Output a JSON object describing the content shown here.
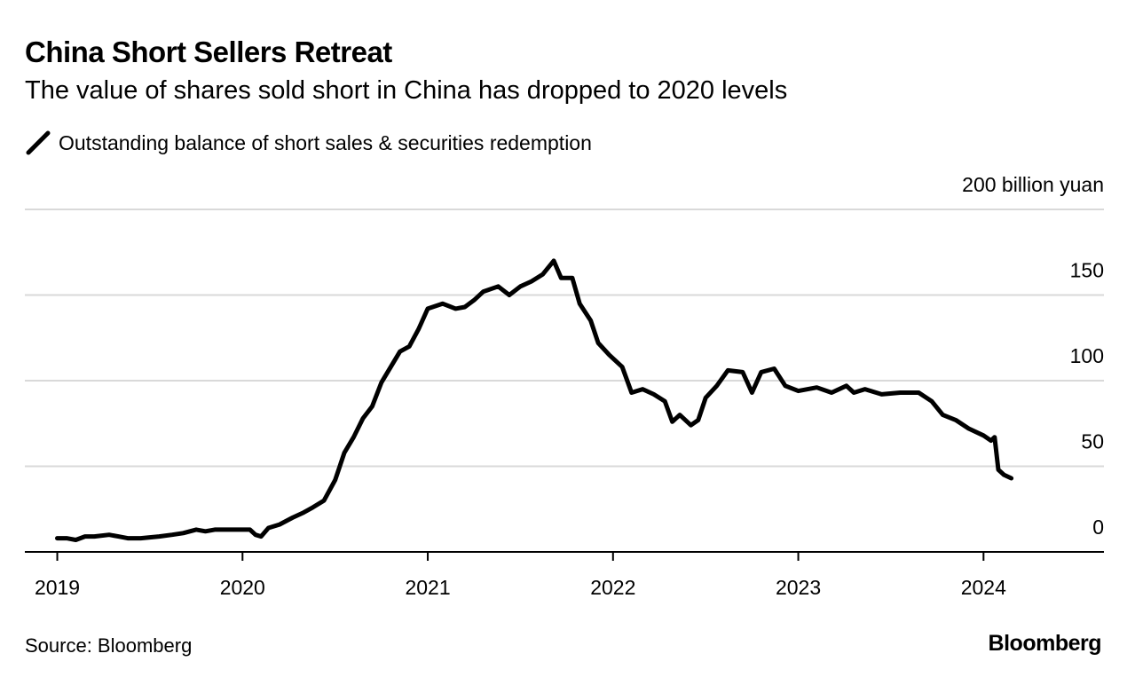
{
  "chart_data": {
    "type": "line",
    "title": "China Short Sellers Retreat",
    "subtitle": "The value of shares sold short in China has dropped to 2020 levels",
    "legend": [
      "Outstanding balance of short sales & securities redemption"
    ],
    "ylabel_unit": "200 billion yuan",
    "ylim": [
      0,
      200
    ],
    "yticks": [
      0,
      50,
      100,
      150,
      200
    ],
    "ytick_labels": [
      "0",
      "50",
      "100",
      "150",
      "200 billion yuan"
    ],
    "xlim": [
      2019.0,
      2024.65
    ],
    "xticks": [
      2019,
      2020,
      2021,
      2022,
      2023,
      2024
    ],
    "xtick_labels": [
      "2019",
      "2020",
      "2021",
      "2022",
      "2023",
      "2024"
    ],
    "series": [
      {
        "name": "Outstanding balance of short sales & securities redemption",
        "color": "#000000",
        "points": [
          [
            2019.0,
            8
          ],
          [
            2019.05,
            8
          ],
          [
            2019.1,
            7
          ],
          [
            2019.15,
            9
          ],
          [
            2019.2,
            9
          ],
          [
            2019.28,
            10
          ],
          [
            2019.33,
            9
          ],
          [
            2019.38,
            8
          ],
          [
            2019.45,
            8
          ],
          [
            2019.55,
            9
          ],
          [
            2019.62,
            10
          ],
          [
            2019.68,
            11
          ],
          [
            2019.75,
            13
          ],
          [
            2019.8,
            12
          ],
          [
            2019.85,
            13
          ],
          [
            2019.9,
            13
          ],
          [
            2019.95,
            13
          ],
          [
            2020.0,
            13
          ],
          [
            2020.04,
            13
          ],
          [
            2020.07,
            10
          ],
          [
            2020.1,
            9
          ],
          [
            2020.14,
            14
          ],
          [
            2020.2,
            16
          ],
          [
            2020.27,
            20
          ],
          [
            2020.33,
            23
          ],
          [
            2020.38,
            26
          ],
          [
            2020.44,
            30
          ],
          [
            2020.5,
            42
          ],
          [
            2020.55,
            58
          ],
          [
            2020.6,
            67
          ],
          [
            2020.65,
            78
          ],
          [
            2020.7,
            85
          ],
          [
            2020.75,
            99
          ],
          [
            2020.8,
            108
          ],
          [
            2020.85,
            117
          ],
          [
            2020.9,
            120
          ],
          [
            2020.95,
            130
          ],
          [
            2021.0,
            142
          ],
          [
            2021.08,
            145
          ],
          [
            2021.15,
            142
          ],
          [
            2021.2,
            143
          ],
          [
            2021.25,
            147
          ],
          [
            2021.3,
            152
          ],
          [
            2021.38,
            155
          ],
          [
            2021.44,
            150
          ],
          [
            2021.5,
            155
          ],
          [
            2021.56,
            158
          ],
          [
            2021.62,
            162
          ],
          [
            2021.68,
            170
          ],
          [
            2021.72,
            160
          ],
          [
            2021.78,
            160
          ],
          [
            2021.82,
            145
          ],
          [
            2021.88,
            135
          ],
          [
            2021.92,
            122
          ],
          [
            2021.98,
            115
          ],
          [
            2022.05,
            108
          ],
          [
            2022.1,
            93
          ],
          [
            2022.16,
            95
          ],
          [
            2022.22,
            92
          ],
          [
            2022.28,
            88
          ],
          [
            2022.32,
            76
          ],
          [
            2022.36,
            80
          ],
          [
            2022.42,
            74
          ],
          [
            2022.46,
            77
          ],
          [
            2022.5,
            90
          ],
          [
            2022.56,
            97
          ],
          [
            2022.62,
            106
          ],
          [
            2022.7,
            105
          ],
          [
            2022.75,
            93
          ],
          [
            2022.8,
            105
          ],
          [
            2022.87,
            107
          ],
          [
            2022.93,
            97
          ],
          [
            2023.0,
            94
          ],
          [
            2023.1,
            96
          ],
          [
            2023.18,
            93
          ],
          [
            2023.26,
            97
          ],
          [
            2023.3,
            93
          ],
          [
            2023.36,
            95
          ],
          [
            2023.45,
            92
          ],
          [
            2023.55,
            93
          ],
          [
            2023.65,
            93
          ],
          [
            2023.72,
            88
          ],
          [
            2023.78,
            80
          ],
          [
            2023.85,
            77
          ],
          [
            2023.92,
            72
          ],
          [
            2024.0,
            68
          ],
          [
            2024.04,
            65
          ],
          [
            2024.06,
            67
          ],
          [
            2024.08,
            48
          ],
          [
            2024.11,
            45
          ],
          [
            2024.15,
            43
          ]
        ]
      }
    ],
    "grid": true
  },
  "source": "Source: Bloomberg",
  "brand": "Bloomberg",
  "colors": {
    "line": "#000000",
    "grid": "#d9d9d9",
    "axis": "#000000"
  }
}
